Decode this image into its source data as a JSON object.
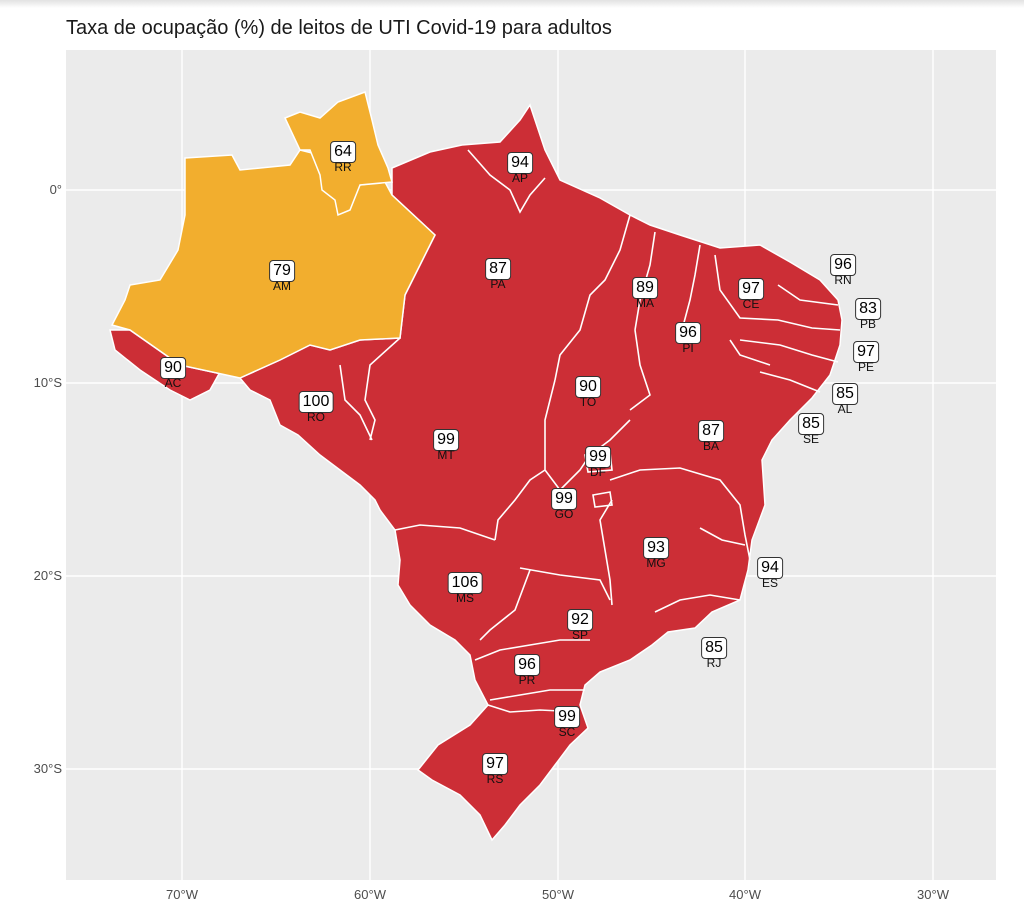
{
  "title": "Taxa de ocupação (%) de leitos de UTI Covid-19 para adultos",
  "axes": {
    "y_labels": [
      "0°",
      "10°S",
      "20°S",
      "30°S"
    ],
    "x_labels": [
      "70°W",
      "60°W",
      "50°W",
      "40°W",
      "30°W"
    ]
  },
  "colors": {
    "high": "#cc2e36",
    "medium": "#f2ae2e",
    "panel": "#ebebeb",
    "grid": "#ffffff"
  },
  "states": [
    {
      "abbr": "RR",
      "value": "64",
      "level": "medium"
    },
    {
      "abbr": "AP",
      "value": "94",
      "level": "high"
    },
    {
      "abbr": "AM",
      "value": "79",
      "level": "medium"
    },
    {
      "abbr": "PA",
      "value": "87",
      "level": "high"
    },
    {
      "abbr": "MA",
      "value": "89",
      "level": "high"
    },
    {
      "abbr": "CE",
      "value": "97",
      "level": "high"
    },
    {
      "abbr": "RN",
      "value": "96",
      "level": "high"
    },
    {
      "abbr": "PB",
      "value": "83",
      "level": "high"
    },
    {
      "abbr": "PE",
      "value": "97",
      "level": "high"
    },
    {
      "abbr": "PI",
      "value": "96",
      "level": "high"
    },
    {
      "abbr": "AL",
      "value": "85",
      "level": "high"
    },
    {
      "abbr": "SE",
      "value": "85",
      "level": "high"
    },
    {
      "abbr": "AC",
      "value": "90",
      "level": "high"
    },
    {
      "abbr": "RO",
      "value": "100",
      "level": "high"
    },
    {
      "abbr": "TO",
      "value": "90",
      "level": "high"
    },
    {
      "abbr": "MT",
      "value": "99",
      "level": "high"
    },
    {
      "abbr": "BA",
      "value": "87",
      "level": "high"
    },
    {
      "abbr": "DF",
      "value": "99",
      "level": "high"
    },
    {
      "abbr": "GO",
      "value": "99",
      "level": "high"
    },
    {
      "abbr": "MG",
      "value": "93",
      "level": "high"
    },
    {
      "abbr": "ES",
      "value": "94",
      "level": "high"
    },
    {
      "abbr": "MS",
      "value": "106",
      "level": "high"
    },
    {
      "abbr": "SP",
      "value": "92",
      "level": "high"
    },
    {
      "abbr": "RJ",
      "value": "85",
      "level": "high"
    },
    {
      "abbr": "PR",
      "value": "96",
      "level": "high"
    },
    {
      "abbr": "SC",
      "value": "99",
      "level": "high"
    },
    {
      "abbr": "RS",
      "value": "97",
      "level": "high"
    }
  ]
}
